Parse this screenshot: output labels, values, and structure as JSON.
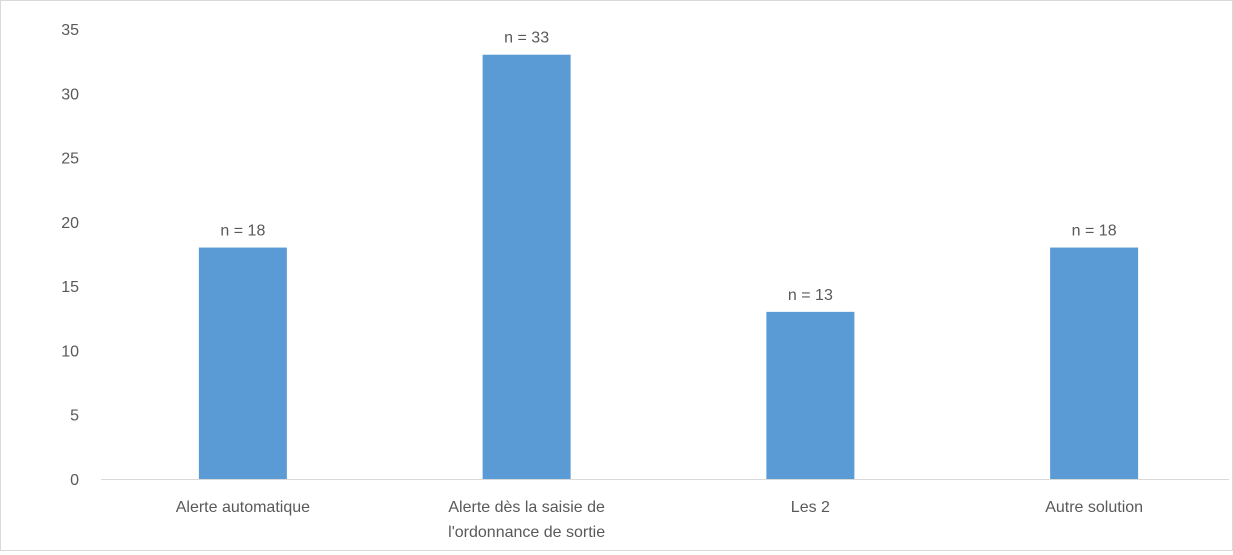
{
  "chart_data": {
    "type": "bar",
    "categories": [
      [
        "Alerte automatique"
      ],
      [
        "Alerte dès la saisie de",
        "l'ordonnance de sortie"
      ],
      [
        "Les 2"
      ],
      [
        "Autre solution"
      ]
    ],
    "values": [
      18,
      33,
      13,
      18
    ],
    "data_labels": [
      "n = 18",
      "n = 33",
      "n = 13",
      "n = 18"
    ],
    "title": "",
    "xlabel": "",
    "ylabel": "",
    "ylim": [
      0,
      35
    ],
    "yticks": [
      "0",
      "5",
      "10",
      "15",
      "20",
      "25",
      "30",
      "35"
    ],
    "grid": false,
    "legend": "none",
    "bar_color": "#5b9bd5",
    "axis_color": "#d9d9d9"
  }
}
